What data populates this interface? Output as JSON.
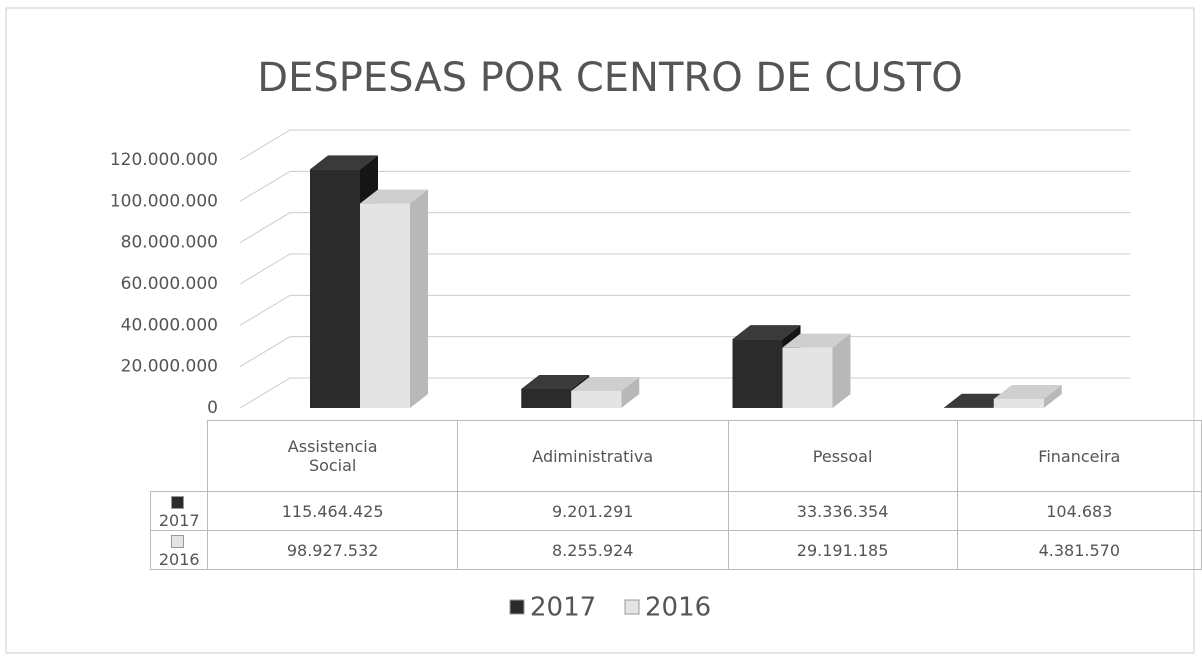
{
  "chart_data": {
    "type": "bar3d",
    "title": "DESPESAS POR CENTRO DE CUSTO",
    "categories": [
      "Assistencia Social",
      "Adiministrativa",
      "Pessoal",
      "Financeira"
    ],
    "series": [
      {
        "name": "2017",
        "color": "#2b2b2b",
        "values": [
          115464425,
          9201291,
          33336354,
          104683
        ],
        "value_labels": [
          "115.464.425",
          "9.201.291",
          "33.336.354",
          "104.683"
        ]
      },
      {
        "name": "2016",
        "color": "#e4e4e4",
        "values": [
          98927532,
          8255924,
          29191185,
          4381570
        ],
        "value_labels": [
          "98.927.532",
          "8.255.924",
          "29.191.185",
          "4.381.570"
        ]
      }
    ],
    "ylim": [
      0,
      120000000
    ],
    "yticks": [
      0,
      {
        "value": 20000000,
        "label": "20.000.000"
      },
      {
        "value": 40000000,
        "label": "40.000.000"
      },
      {
        "value": 60000000,
        "label": "60.000.000"
      },
      {
        "value": 80000000,
        "label": "80.000.000"
      },
      {
        "value": 100000000,
        "label": "100.000.000"
      },
      {
        "value": 120000000,
        "label": "120.000.000"
      }
    ],
    "grid": true,
    "legend": "bottom",
    "data_table": true
  }
}
